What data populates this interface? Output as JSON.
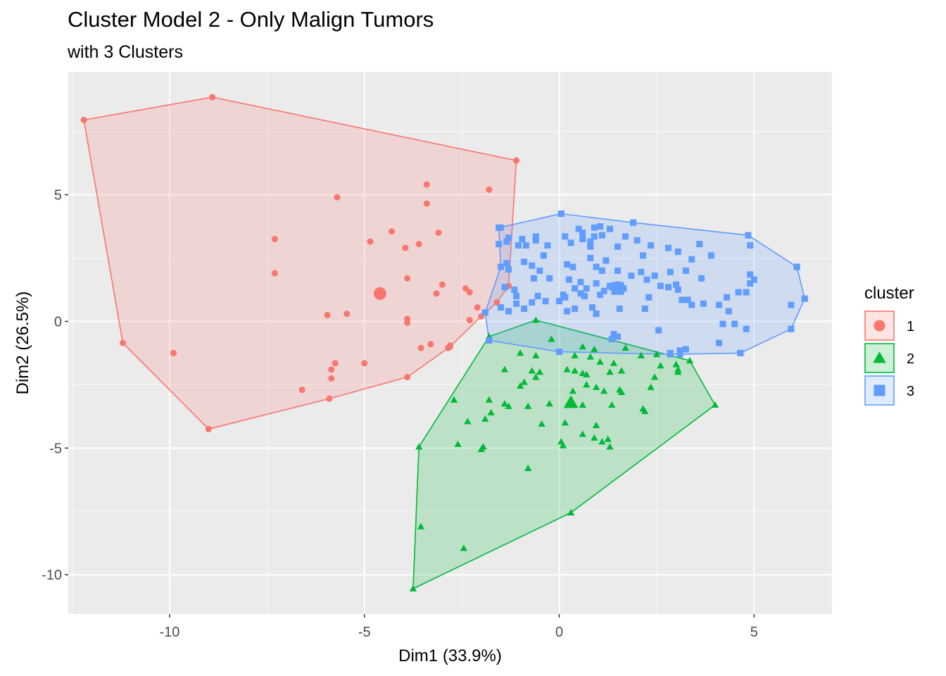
{
  "chart_data": {
    "type": "scatter",
    "title": "Cluster Model 2 - Only Malign Tumors",
    "subtitle": "with 3 Clusters",
    "xlabel": "Dim1 (33.9%)",
    "ylabel": "Dim2 (26.5%)",
    "xlim": [
      -12.6,
      7.0
    ],
    "ylim": [
      -11.55,
      9.85
    ],
    "x_ticks": [
      {
        "value": -10,
        "label": "-10"
      },
      {
        "value": -5,
        "label": "-5"
      },
      {
        "value": 0,
        "label": "0"
      },
      {
        "value": 5,
        "label": "5"
      }
    ],
    "y_ticks": [
      {
        "value": -10,
        "label": "-10"
      },
      {
        "value": -5,
        "label": "-5"
      },
      {
        "value": 0,
        "label": "0"
      },
      {
        "value": 5,
        "label": "5"
      }
    ],
    "grid": true,
    "legend": {
      "title": "cluster",
      "position": "right"
    },
    "series": [
      {
        "name": "1",
        "shape": "circle",
        "color": "#F8766D",
        "center": [
          -4.6,
          1.1
        ],
        "hull": [
          [
            -12.2,
            7.95
          ],
          [
            -8.9,
            8.85
          ],
          [
            -1.1,
            6.35
          ],
          [
            -1.3,
            1.4
          ],
          [
            -1.6,
            0.75
          ],
          [
            -2.0,
            0.2
          ],
          [
            -2.8,
            -1.0
          ],
          [
            -3.9,
            -2.2
          ],
          [
            -5.9,
            -3.05
          ],
          [
            -9.0,
            -4.25
          ],
          [
            -11.2,
            -0.85
          ]
        ],
        "points": [
          [
            -5.7,
            4.9
          ],
          [
            -3.4,
            5.4
          ],
          [
            -1.8,
            5.2
          ],
          [
            -3.4,
            4.65
          ],
          [
            -4.3,
            3.55
          ],
          [
            -3.1,
            3.5
          ],
          [
            -4.85,
            3.15
          ],
          [
            -3.6,
            3.05
          ],
          [
            -3.95,
            2.9
          ],
          [
            -7.3,
            3.25
          ],
          [
            -7.3,
            1.9
          ],
          [
            -3.9,
            1.7
          ],
          [
            -3.0,
            1.45
          ],
          [
            -2.4,
            1.3
          ],
          [
            -3.15,
            1.1
          ],
          [
            -2.3,
            1.15
          ],
          [
            -2.1,
            0.55
          ],
          [
            -5.45,
            0.3
          ],
          [
            -5.95,
            0.25
          ],
          [
            -3.9,
            0.1
          ],
          [
            -3.9,
            -0.05
          ],
          [
            -2.3,
            0.05
          ],
          [
            -9.9,
            -1.25
          ],
          [
            -3.55,
            -1.05
          ],
          [
            -3.3,
            -0.9
          ],
          [
            -2.8,
            -0.95
          ],
          [
            -2.85,
            -1.05
          ],
          [
            -5.0,
            -1.65
          ],
          [
            -5.75,
            -1.65
          ],
          [
            -5.85,
            -1.9
          ],
          [
            -5.85,
            -2.25
          ],
          [
            -6.6,
            -2.7
          ]
        ]
      },
      {
        "name": "2",
        "shape": "triangle",
        "color": "#00BA38",
        "center": [
          0.3,
          -3.2
        ],
        "hull": [
          [
            -0.6,
            0.05
          ],
          [
            3.35,
            -1.55
          ],
          [
            4.0,
            -3.3
          ],
          [
            0.3,
            -7.55
          ],
          [
            -3.75,
            -10.55
          ],
          [
            -3.6,
            -4.95
          ],
          [
            -1.8,
            -0.6
          ]
        ],
        "points": [
          [
            -0.2,
            -0.7
          ],
          [
            0.6,
            -1.0
          ],
          [
            0.9,
            -1.1
          ],
          [
            1.7,
            -1.05
          ],
          [
            -1.0,
            -1.25
          ],
          [
            -0.6,
            -1.35
          ],
          [
            0.4,
            -1.35
          ],
          [
            0.8,
            -1.4
          ],
          [
            2.1,
            -1.35
          ],
          [
            2.5,
            -1.3
          ],
          [
            1.05,
            -1.6
          ],
          [
            1.4,
            -1.65
          ],
          [
            2.6,
            -1.75
          ],
          [
            3.0,
            -1.7
          ],
          [
            3.05,
            -1.9
          ],
          [
            -1.4,
            -1.9
          ],
          [
            -0.7,
            -1.95
          ],
          [
            -0.5,
            -2.0
          ],
          [
            -0.6,
            -2.2
          ],
          [
            0.2,
            -1.9
          ],
          [
            0.4,
            -1.95
          ],
          [
            0.7,
            -2.1
          ],
          [
            0.6,
            -2.05
          ],
          [
            1.3,
            -2.0
          ],
          [
            1.6,
            -1.95
          ],
          [
            2.45,
            -2.2
          ],
          [
            3.05,
            -2.0
          ],
          [
            -0.9,
            -2.4
          ],
          [
            -1.0,
            -2.55
          ],
          [
            0.7,
            -2.5
          ],
          [
            0.35,
            -2.75
          ],
          [
            0.95,
            -2.6
          ],
          [
            1.15,
            -2.75
          ],
          [
            1.55,
            -2.7
          ],
          [
            1.6,
            -2.8
          ],
          [
            2.35,
            -2.6
          ],
          [
            -2.7,
            -3.1
          ],
          [
            -1.8,
            -3.1
          ],
          [
            -1.4,
            -3.25
          ],
          [
            -1.3,
            -3.35
          ],
          [
            -0.8,
            -3.35
          ],
          [
            -0.25,
            -3.25
          ],
          [
            0.3,
            -3.1
          ],
          [
            0.6,
            -3.3
          ],
          [
            1.35,
            -3.3
          ],
          [
            2.15,
            -3.45
          ],
          [
            2.2,
            -3.55
          ],
          [
            -1.75,
            -3.6
          ],
          [
            -1.9,
            -3.85
          ],
          [
            -2.35,
            -3.95
          ],
          [
            -0.45,
            -4.05
          ],
          [
            0.15,
            -4.0
          ],
          [
            0.95,
            -4.1
          ],
          [
            0.6,
            -4.45
          ],
          [
            0.9,
            -4.6
          ],
          [
            0.05,
            -4.75
          ],
          [
            1.1,
            -4.75
          ],
          [
            1.25,
            -4.65
          ],
          [
            1.3,
            -4.95
          ],
          [
            0.1,
            -4.9
          ],
          [
            -1.95,
            -4.95
          ],
          [
            -2.0,
            -5.05
          ],
          [
            -2.6,
            -4.85
          ],
          [
            -0.8,
            -5.8
          ],
          [
            -3.55,
            -8.1
          ],
          [
            -2.45,
            -8.95
          ]
        ]
      },
      {
        "name": "3",
        "shape": "square",
        "color": "#619CFF",
        "center": [
          1.5,
          1.3
        ],
        "hull": [
          [
            0.05,
            4.25
          ],
          [
            1.9,
            3.9
          ],
          [
            4.85,
            3.4
          ],
          [
            6.1,
            2.15
          ],
          [
            6.3,
            0.9
          ],
          [
            5.95,
            -0.3
          ],
          [
            4.65,
            -1.25
          ],
          [
            2.85,
            -1.3
          ],
          [
            0.0,
            -1.2
          ],
          [
            -1.8,
            -0.75
          ],
          [
            -1.9,
            0.35
          ],
          [
            -1.5,
            2.15
          ],
          [
            -1.55,
            3.7
          ]
        ],
        "points": [
          [
            0.05,
            4.25
          ],
          [
            1.9,
            3.9
          ],
          [
            1.3,
            3.65
          ],
          [
            1.05,
            3.75
          ],
          [
            0.5,
            3.65
          ],
          [
            0.9,
            3.7
          ],
          [
            1.1,
            3.4
          ],
          [
            0.9,
            3.35
          ],
          [
            0.6,
            3.5
          ],
          [
            0.3,
            3.1
          ],
          [
            0.15,
            3.35
          ],
          [
            -0.3,
            3.0
          ],
          [
            -0.6,
            3.2
          ],
          [
            -0.6,
            3.35
          ],
          [
            -0.85,
            3.0
          ],
          [
            -0.95,
            3.25
          ],
          [
            -1.05,
            3.0
          ],
          [
            -1.3,
            3.3
          ],
          [
            -1.55,
            3.05
          ],
          [
            -1.5,
            3.7
          ],
          [
            -1.35,
            3.15
          ],
          [
            0.6,
            3.25
          ],
          [
            0.8,
            3.15
          ],
          [
            1.7,
            3.35
          ],
          [
            2.0,
            3.2
          ],
          [
            2.35,
            3.0
          ],
          [
            0.8,
            2.95
          ],
          [
            1.5,
            2.95
          ],
          [
            2.8,
            2.9
          ],
          [
            3.05,
            2.75
          ],
          [
            3.6,
            3.05
          ],
          [
            4.85,
            3.4
          ],
          [
            4.9,
            3.0
          ],
          [
            3.9,
            2.6
          ],
          [
            3.4,
            2.45
          ],
          [
            2.15,
            2.6
          ],
          [
            1.2,
            2.4
          ],
          [
            0.8,
            2.5
          ],
          [
            0.2,
            2.25
          ],
          [
            -0.4,
            2.6
          ],
          [
            -0.7,
            2.2
          ],
          [
            -0.9,
            2.35
          ],
          [
            -1.35,
            2.3
          ],
          [
            -1.3,
            2.05
          ],
          [
            -0.5,
            2.0
          ],
          [
            0.35,
            2.15
          ],
          [
            0.95,
            2.15
          ],
          [
            1.1,
            2.0
          ],
          [
            1.5,
            2.0
          ],
          [
            1.85,
            1.8
          ],
          [
            2.1,
            1.95
          ],
          [
            2.25,
            1.65
          ],
          [
            2.45,
            1.8
          ],
          [
            2.85,
            1.95
          ],
          [
            3.25,
            2.0
          ],
          [
            3.65,
            1.7
          ],
          [
            4.9,
            1.85
          ],
          [
            4.9,
            1.5
          ],
          [
            5.0,
            1.65
          ],
          [
            -0.65,
            1.7
          ],
          [
            -0.25,
            1.7
          ],
          [
            0.25,
            1.65
          ],
          [
            0.55,
            1.55
          ],
          [
            0.95,
            1.5
          ],
          [
            -1.4,
            1.35
          ],
          [
            -1.15,
            1.25
          ],
          [
            0.4,
            1.3
          ],
          [
            0.55,
            1.1
          ],
          [
            0.7,
            1.3
          ],
          [
            1.35,
            1.35
          ],
          [
            1.5,
            1.45
          ],
          [
            1.65,
            1.3
          ],
          [
            1.15,
            1.2
          ],
          [
            1.3,
            1.4
          ],
          [
            2.6,
            1.4
          ],
          [
            2.8,
            1.35
          ],
          [
            3.0,
            1.45
          ],
          [
            3.05,
            1.25
          ],
          [
            -1.1,
            1.0
          ],
          [
            -0.55,
            1.0
          ],
          [
            0.1,
            1.05
          ],
          [
            0.65,
            1.0
          ],
          [
            1.05,
            1.05
          ],
          [
            2.3,
            0.95
          ],
          [
            3.3,
            0.85
          ],
          [
            4.6,
            1.15
          ],
          [
            4.8,
            1.15
          ],
          [
            -0.35,
            0.8
          ],
          [
            -0.7,
            0.75
          ],
          [
            -1.1,
            0.7
          ],
          [
            -1.5,
            0.55
          ],
          [
            0.0,
            0.8
          ],
          [
            0.15,
            0.95
          ],
          [
            0.4,
            0.5
          ],
          [
            0.85,
            0.55
          ],
          [
            1.55,
            0.5
          ],
          [
            3.15,
            0.85
          ],
          [
            4.3,
            0.95
          ],
          [
            -1.3,
            0.4
          ],
          [
            -0.9,
            0.5
          ],
          [
            0.2,
            0.4
          ],
          [
            0.95,
            0.3
          ],
          [
            2.2,
            0.5
          ],
          [
            3.4,
            0.65
          ],
          [
            3.7,
            0.7
          ],
          [
            4.1,
            0.65
          ],
          [
            4.35,
            0.4
          ],
          [
            5.95,
            0.65
          ],
          [
            2.55,
            -0.35
          ],
          [
            4.5,
            -0.1
          ],
          [
            4.8,
            -0.3
          ],
          [
            1.4,
            -0.5
          ],
          [
            1.5,
            -0.6
          ],
          [
            3.1,
            -1.15
          ],
          [
            2.85,
            -1.25
          ],
          [
            4.1,
            -0.85
          ],
          [
            4.65,
            -1.25
          ],
          [
            1.35,
            -0.7
          ],
          [
            3.25,
            -1.1
          ],
          [
            3.1,
            -1.3
          ],
          [
            5.95,
            -0.3
          ],
          [
            4.2,
            -0.1
          ],
          [
            6.1,
            2.15
          ],
          [
            6.3,
            0.9
          ]
        ]
      }
    ]
  }
}
